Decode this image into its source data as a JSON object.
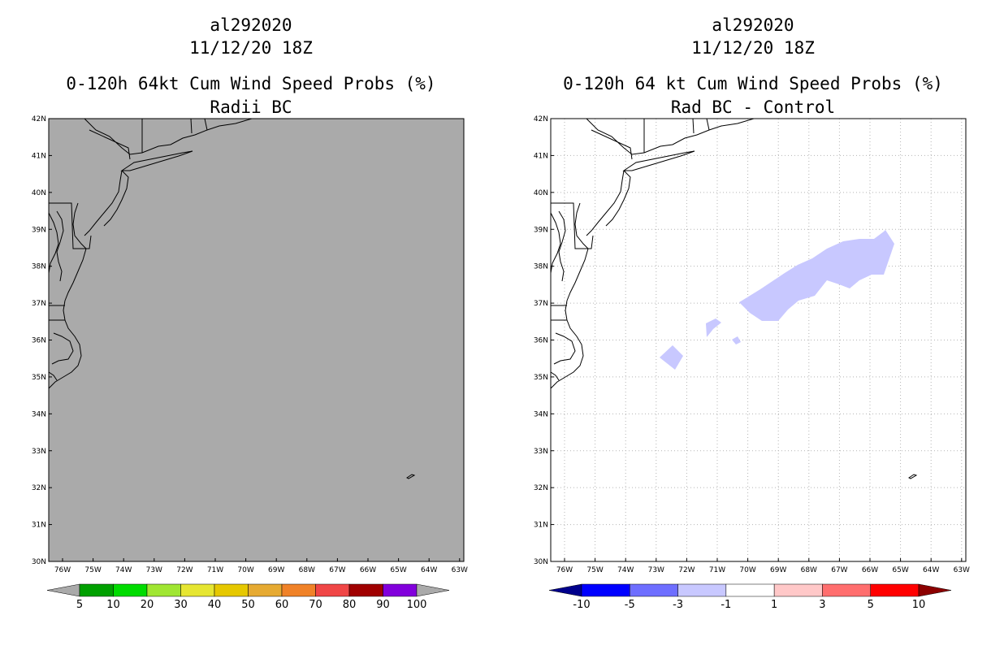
{
  "left_panel": {
    "storm_id": "al292020",
    "date_time": "11/12/20 18Z",
    "product": "0-120h 64kt Cum Wind Speed Probs (%)",
    "subtitle": "Radii BC",
    "background_color": "#aaaaaa",
    "lat_labels": [
      "42N",
      "41N",
      "40N",
      "39N",
      "38N",
      "37N",
      "36N",
      "35N",
      "34N",
      "33N",
      "32N",
      "31N",
      "30N"
    ],
    "lon_labels": [
      "76W",
      "75W",
      "74W",
      "73W",
      "72W",
      "71W",
      "70W",
      "69W",
      "68W",
      "67W",
      "66W",
      "65W",
      "64W",
      "63W"
    ],
    "colorbar": {
      "labels": [
        "5",
        "10",
        "20",
        "30",
        "40",
        "50",
        "60",
        "70",
        "80",
        "90",
        "100"
      ],
      "colors": [
        "#aaaaaa",
        "#00a000",
        "#00dc00",
        "#a0e632",
        "#e6e632",
        "#e6c800",
        "#e6aa32",
        "#f08228",
        "#f04646",
        "#a00000",
        "#8200dc",
        "#aaaaaa"
      ]
    }
  },
  "right_panel": {
    "storm_id": "al292020",
    "date_time": "11/12/20 18Z",
    "product": "0-120h 64 kt Cum Wind Speed Probs (%)",
    "subtitle": "Rad BC - Control",
    "background_color": "#ffffff",
    "difference_fill_color": "#c8c8ff",
    "lat_labels": [
      "42N",
      "41N",
      "40N",
      "39N",
      "38N",
      "37N",
      "36N",
      "35N",
      "34N",
      "33N",
      "32N",
      "31N",
      "30N"
    ],
    "lon_labels": [
      "76W",
      "75W",
      "74W",
      "73W",
      "72W",
      "71W",
      "70W",
      "69W",
      "68W",
      "67W",
      "66W",
      "65W",
      "64W",
      "63W"
    ],
    "colorbar": {
      "labels": [
        "-10",
        "-5",
        "-3",
        "-1",
        "1",
        "3",
        "5",
        "10"
      ],
      "colors": [
        "#00008c",
        "#0000ff",
        "#6e6eff",
        "#c8c8ff",
        "#ffffff",
        "#ffc8c8",
        "#ff6e6e",
        "#ff0000",
        "#8c0000"
      ]
    }
  }
}
